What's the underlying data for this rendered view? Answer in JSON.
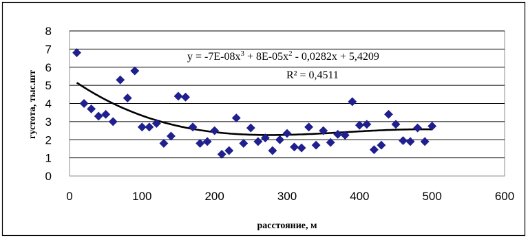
{
  "chart_data": {
    "type": "scatter",
    "xlabel": "расстояние, м",
    "ylabel": "густота, тыс.шт",
    "xlim": [
      0,
      600
    ],
    "ylim": [
      0,
      8
    ],
    "x_ticks": [
      "0",
      "100",
      "200",
      "300",
      "400",
      "500",
      "600"
    ],
    "y_ticks": [
      "0",
      "1",
      "2",
      "3",
      "4",
      "5",
      "6",
      "7",
      "8"
    ],
    "grid": "horizontal",
    "marker_color": "#1f1f8f",
    "trend_color": "#000000",
    "points": [
      [
        10,
        6.8
      ],
      [
        20,
        4.0
      ],
      [
        30,
        3.7
      ],
      [
        40,
        3.3
      ],
      [
        50,
        3.4
      ],
      [
        60,
        3.0
      ],
      [
        70,
        5.3
      ],
      [
        80,
        4.3
      ],
      [
        90,
        5.8
      ],
      [
        100,
        2.7
      ],
      [
        110,
        2.7
      ],
      [
        120,
        2.9
      ],
      [
        130,
        1.8
      ],
      [
        140,
        2.2
      ],
      [
        150,
        4.4
      ],
      [
        160,
        4.35
      ],
      [
        170,
        2.7
      ],
      [
        180,
        1.8
      ],
      [
        190,
        1.9
      ],
      [
        200,
        2.5
      ],
      [
        210,
        1.2
      ],
      [
        220,
        1.4
      ],
      [
        230,
        3.2
      ],
      [
        240,
        1.8
      ],
      [
        250,
        2.65
      ],
      [
        260,
        1.9
      ],
      [
        270,
        2.1
      ],
      [
        280,
        1.4
      ],
      [
        290,
        2.0
      ],
      [
        300,
        2.35
      ],
      [
        310,
        1.6
      ],
      [
        320,
        1.55
      ],
      [
        330,
        2.7
      ],
      [
        340,
        1.7
      ],
      [
        350,
        2.5
      ],
      [
        360,
        1.85
      ],
      [
        370,
        2.3
      ],
      [
        380,
        2.25
      ],
      [
        390,
        4.1
      ],
      [
        400,
        2.8
      ],
      [
        410,
        2.85
      ],
      [
        420,
        1.45
      ],
      [
        430,
        1.7
      ],
      [
        440,
        3.4
      ],
      [
        450,
        2.85
      ],
      [
        460,
        1.95
      ],
      [
        470,
        1.9
      ],
      [
        480,
        2.65
      ],
      [
        490,
        1.9
      ],
      [
        500,
        2.75
      ]
    ],
    "trendline": {
      "type": "polynomial-3",
      "coefficients": [
        -7e-08,
        8e-05,
        -0.0282,
        5.4209
      ],
      "x_range": [
        10,
        500
      ]
    },
    "equation_text": {
      "prefix": "y = -7E-08x",
      "sup1": "3",
      "mid": " + 8E-05x",
      "sup2": "2",
      "suffix": " - 0,0282x + 5,4209"
    },
    "r2_text": "R² = 0,4511"
  }
}
